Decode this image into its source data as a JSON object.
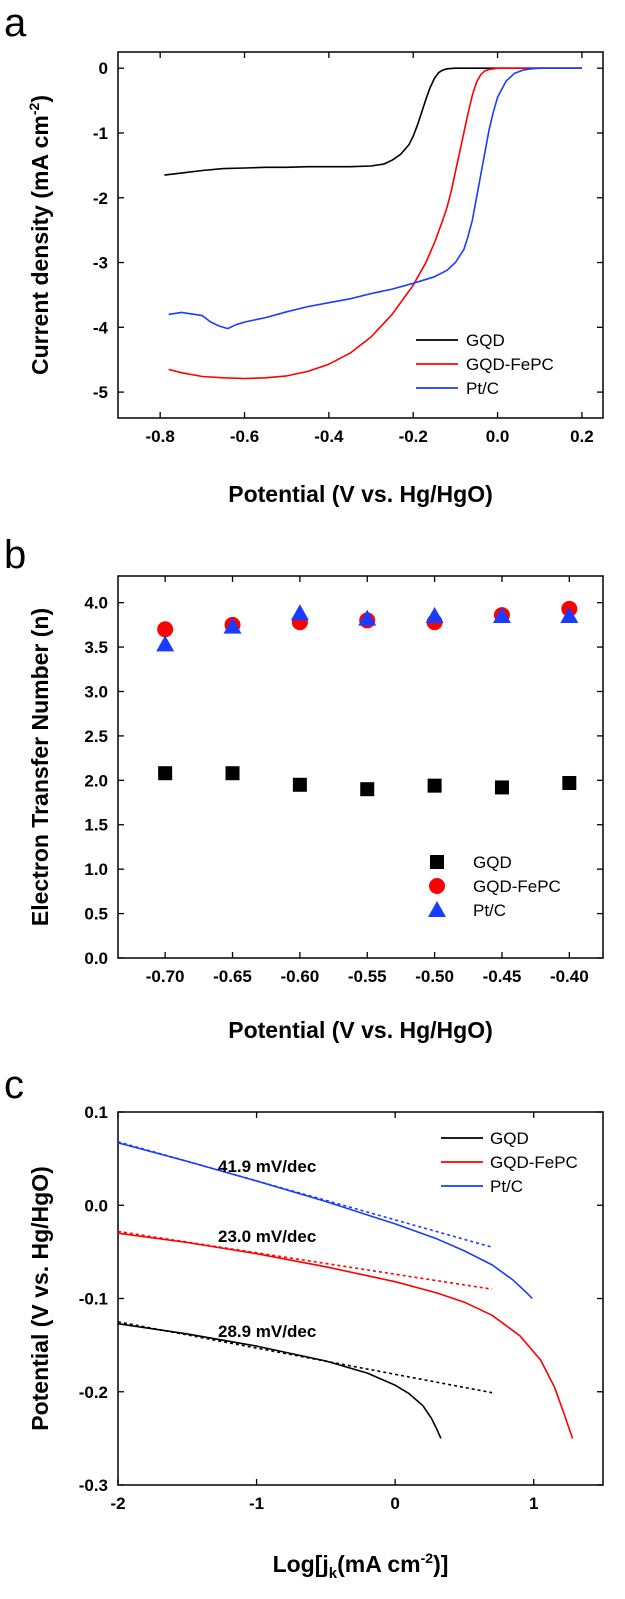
{
  "chart_data": [
    {
      "panel": "a",
      "type": "line",
      "xlabel": "Potential (V vs. Hg/HgO)",
      "ylabel_main": "Current density (mA cm",
      "ylabel_sup": "-2",
      "ylabel_close": ")",
      "xlim": [
        -0.9,
        0.25
      ],
      "ylim": [
        -5.4,
        0.25
      ],
      "xticks": [
        -0.8,
        -0.6,
        -0.4,
        -0.2,
        0.0,
        0.2
      ],
      "xtick_labels": [
        "-0.8",
        "-0.6",
        "-0.4",
        "-0.2",
        "0.0",
        "0.2"
      ],
      "yticks": [
        0,
        -1,
        -2,
        -3,
        -4,
        -5
      ],
      "ytick_labels": [
        "0",
        "-1",
        "-2",
        "-3",
        "-4",
        "-5"
      ],
      "legend_position": "bottom-right",
      "series": [
        {
          "name": "GQD",
          "color": "#000000",
          "x": [
            -0.79,
            -0.75,
            -0.7,
            -0.65,
            -0.6,
            -0.55,
            -0.5,
            -0.45,
            -0.4,
            -0.35,
            -0.3,
            -0.27,
            -0.25,
            -0.23,
            -0.21,
            -0.2,
            -0.19,
            -0.18,
            -0.17,
            -0.16,
            -0.15,
            -0.14,
            -0.13,
            -0.12,
            -0.1,
            -0.05,
            0.0,
            0.05,
            0.1,
            0.15,
            0.2
          ],
          "y": [
            -1.65,
            -1.62,
            -1.58,
            -1.55,
            -1.54,
            -1.53,
            -1.53,
            -1.52,
            -1.52,
            -1.52,
            -1.51,
            -1.48,
            -1.42,
            -1.33,
            -1.18,
            -1.05,
            -0.88,
            -0.68,
            -0.48,
            -0.3,
            -0.16,
            -0.07,
            -0.03,
            -0.01,
            0.0,
            0.0,
            0.0,
            0.0,
            0.0,
            0.0,
            0.0
          ]
        },
        {
          "name": "GQD-FePC",
          "color": "#ff0000",
          "x": [
            -0.78,
            -0.75,
            -0.7,
            -0.65,
            -0.6,
            -0.55,
            -0.5,
            -0.45,
            -0.4,
            -0.35,
            -0.3,
            -0.25,
            -0.2,
            -0.17,
            -0.15,
            -0.13,
            -0.12,
            -0.11,
            -0.1,
            -0.09,
            -0.08,
            -0.07,
            -0.06,
            -0.05,
            -0.04,
            -0.03,
            -0.02,
            0.0,
            0.05,
            0.1,
            0.15,
            0.2
          ],
          "y": [
            -4.65,
            -4.7,
            -4.76,
            -4.78,
            -4.79,
            -4.78,
            -4.75,
            -4.68,
            -4.57,
            -4.4,
            -4.15,
            -3.8,
            -3.35,
            -3.0,
            -2.7,
            -2.35,
            -2.15,
            -1.9,
            -1.6,
            -1.3,
            -1.0,
            -0.7,
            -0.42,
            -0.22,
            -0.1,
            -0.04,
            -0.02,
            0.0,
            0.0,
            0.0,
            0.0,
            0.0
          ]
        },
        {
          "name": "Pt/C",
          "color": "#1a3cff",
          "x": [
            -0.78,
            -0.75,
            -0.7,
            -0.68,
            -0.66,
            -0.64,
            -0.62,
            -0.6,
            -0.55,
            -0.5,
            -0.45,
            -0.4,
            -0.35,
            -0.3,
            -0.25,
            -0.2,
            -0.15,
            -0.12,
            -0.1,
            -0.08,
            -0.07,
            -0.06,
            -0.05,
            -0.04,
            -0.03,
            -0.02,
            -0.01,
            0.0,
            0.02,
            0.04,
            0.06,
            0.08,
            0.1,
            0.15,
            0.2
          ],
          "y": [
            -3.8,
            -3.77,
            -3.82,
            -3.92,
            -3.98,
            -4.02,
            -3.96,
            -3.92,
            -3.85,
            -3.76,
            -3.68,
            -3.62,
            -3.56,
            -3.48,
            -3.41,
            -3.32,
            -3.22,
            -3.12,
            -3.0,
            -2.8,
            -2.6,
            -2.35,
            -2.0,
            -1.65,
            -1.3,
            -0.95,
            -0.68,
            -0.45,
            -0.2,
            -0.08,
            -0.03,
            -0.01,
            0.0,
            0.0,
            0.0
          ]
        }
      ]
    },
    {
      "panel": "b",
      "type": "scatter",
      "xlabel": "Potential (V vs. Hg/HgO)",
      "ylabel": "Electron Transfer Number (n)",
      "xlim": [
        -0.735,
        -0.375
      ],
      "ylim": [
        0.0,
        4.3
      ],
      "xticks": [
        -0.7,
        -0.65,
        -0.6,
        -0.55,
        -0.5,
        -0.45,
        -0.4
      ],
      "xtick_labels": [
        "-0.70",
        "-0.65",
        "-0.60",
        "-0.55",
        "-0.50",
        "-0.45",
        "-0.40"
      ],
      "yticks": [
        0.0,
        0.5,
        1.0,
        1.5,
        2.0,
        2.5,
        3.0,
        3.5,
        4.0
      ],
      "ytick_labels": [
        "0.0",
        "0.5",
        "1.0",
        "1.5",
        "2.0",
        "2.5",
        "3.0",
        "3.5",
        "4.0"
      ],
      "legend_position": "bottom-right",
      "x": [
        -0.7,
        -0.65,
        -0.6,
        -0.55,
        -0.5,
        -0.45,
        -0.4
      ],
      "series": [
        {
          "name": "GQD",
          "color": "#000000",
          "marker": "square",
          "values": [
            2.08,
            2.08,
            1.95,
            1.9,
            1.94,
            1.92,
            1.97
          ]
        },
        {
          "name": "GQD-FePC",
          "color": "#ff0000",
          "marker": "circle",
          "values": [
            3.7,
            3.75,
            3.78,
            3.8,
            3.78,
            3.86,
            3.93
          ]
        },
        {
          "name": "Pt/C",
          "color": "#1a3cff",
          "marker": "triangle",
          "values": [
            3.53,
            3.73,
            3.88,
            3.82,
            3.85,
            3.85,
            3.85
          ]
        }
      ]
    },
    {
      "panel": "c",
      "type": "line",
      "xlabel_main": "Log[j",
      "xlabel_sub": "k",
      "xlabel_mid": "(mA cm",
      "xlabel_sup": "-2",
      "xlabel_close": ")]",
      "ylabel": "Potential (V vs. Hg/HgO)",
      "xlim": [
        -2.0,
        1.5
      ],
      "ylim": [
        -0.3,
        0.1
      ],
      "xticks": [
        -2,
        -1,
        0,
        1
      ],
      "xtick_labels": [
        "-2",
        "-1",
        "0",
        "1"
      ],
      "yticks": [
        0.1,
        0.0,
        -0.1,
        -0.2,
        -0.3
      ],
      "ytick_labels": [
        "0.1",
        "0.0",
        "-0.1",
        "-0.2",
        "-0.3"
      ],
      "legend_position": "top-right",
      "series": [
        {
          "name": "GQD",
          "color": "#000000",
          "x": [
            -2.0,
            -1.5,
            -1.0,
            -0.5,
            -0.2,
            0.0,
            0.1,
            0.2,
            0.26,
            0.3,
            0.33
          ],
          "y": [
            -0.127,
            -0.138,
            -0.151,
            -0.167,
            -0.18,
            -0.193,
            -0.202,
            -0.215,
            -0.228,
            -0.24,
            -0.25
          ]
        },
        {
          "name": "GQD-FePC",
          "color": "#ff0000",
          "x": [
            -2.0,
            -1.5,
            -1.0,
            -0.5,
            0.0,
            0.3,
            0.5,
            0.7,
            0.9,
            1.05,
            1.15,
            1.22,
            1.28
          ],
          "y": [
            -0.03,
            -0.04,
            -0.052,
            -0.066,
            -0.082,
            -0.094,
            -0.104,
            -0.118,
            -0.14,
            -0.166,
            -0.195,
            -0.224,
            -0.25
          ]
        },
        {
          "name": "Pt/C",
          "color": "#1a3cff",
          "x": [
            -2.0,
            -1.5,
            -1.0,
            -0.5,
            0.0,
            0.3,
            0.5,
            0.7,
            0.85,
            0.95,
            0.99
          ],
          "y": [
            0.067,
            0.047,
            0.026,
            0.004,
            -0.02,
            -0.036,
            -0.049,
            -0.064,
            -0.08,
            -0.094,
            -0.1
          ]
        }
      ],
      "fits": [
        {
          "label": "28.9 mV/dec",
          "color": "#000000",
          "x": [
            -2.0,
            0.7
          ],
          "y": [
            -0.125,
            -0.201
          ]
        },
        {
          "label": "23.0 mV/dec",
          "color": "#ff0000",
          "x": [
            -2.0,
            0.7
          ],
          "y": [
            -0.028,
            -0.09
          ]
        },
        {
          "label": "41.9 mV/dec",
          "color": "#1a3cff",
          "x": [
            -2.0,
            0.7
          ],
          "y": [
            0.068,
            -0.045
          ]
        }
      ]
    }
  ],
  "panel_letters": [
    "a",
    "b",
    "c"
  ]
}
